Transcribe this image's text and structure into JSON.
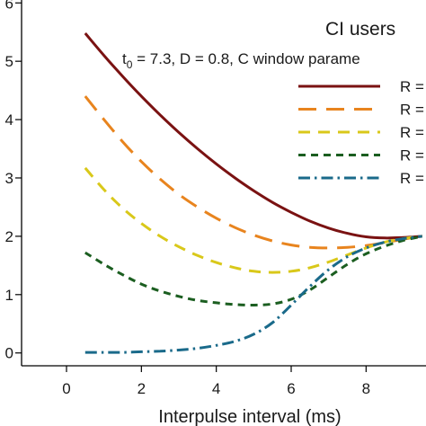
{
  "chart_data": {
    "type": "line",
    "title": "CI users",
    "subtitle": "t0 = 7.3, D = 0.8, C  window parame",
    "subtitle_parts": {
      "t": "t",
      "sub": "0",
      "rest": " = 7.3, D = 0.8, C  window parame"
    },
    "xlabel": "Interpulse interval (ms)",
    "ylabel": "",
    "xlim": [
      -1.2,
      9.6
    ],
    "ylim": [
      -0.22,
      6.05
    ],
    "x_ticks": [
      0,
      2,
      4,
      6,
      8
    ],
    "x_tick_labels": [
      "0",
      "2",
      "4",
      "6",
      "8"
    ],
    "y_ticks": [
      0,
      1,
      2,
      3,
      4,
      5,
      6
    ],
    "y_tick_labels": [
      "0",
      "1",
      "2",
      "3",
      "4",
      "5",
      "6"
    ],
    "grid": false,
    "legend_position": "top-right",
    "series": [
      {
        "name": "R =",
        "color": "#7a1212",
        "dash": "solid",
        "x": [
          0.5,
          1.0,
          1.5,
          2.0,
          2.5,
          3.0,
          3.5,
          4.0,
          4.5,
          5.0,
          5.5,
          6.0,
          6.5,
          7.0,
          7.5,
          8.0,
          8.5,
          9.0,
          9.5
        ],
        "y": [
          5.48,
          5.1,
          4.74,
          4.4,
          4.08,
          3.78,
          3.5,
          3.24,
          3.0,
          2.78,
          2.58,
          2.41,
          2.26,
          2.14,
          2.05,
          1.99,
          1.97,
          1.98,
          2.0
        ]
      },
      {
        "name": "R =",
        "color": "#e8841e",
        "dash": "long",
        "x": [
          0.5,
          1.0,
          1.5,
          2.0,
          2.5,
          3.0,
          3.5,
          4.0,
          4.5,
          5.0,
          5.5,
          6.0,
          6.5,
          7.0,
          7.5,
          8.0,
          8.5,
          9.0,
          9.5
        ],
        "y": [
          4.4,
          4.0,
          3.62,
          3.28,
          2.98,
          2.72,
          2.5,
          2.31,
          2.15,
          2.02,
          1.92,
          1.85,
          1.81,
          1.8,
          1.81,
          1.84,
          1.89,
          1.95,
          2.0
        ]
      },
      {
        "name": "R =",
        "color": "#d9c81a",
        "dash": "medium",
        "x": [
          0.5,
          1.0,
          1.5,
          2.0,
          2.5,
          3.0,
          3.5,
          4.0,
          4.5,
          5.0,
          5.5,
          6.0,
          6.5,
          7.0,
          7.5,
          8.0,
          8.5,
          9.0,
          9.5
        ],
        "y": [
          3.17,
          2.8,
          2.48,
          2.22,
          2.0,
          1.82,
          1.67,
          1.55,
          1.46,
          1.4,
          1.38,
          1.4,
          1.46,
          1.56,
          1.68,
          1.8,
          1.9,
          1.96,
          2.0
        ]
      },
      {
        "name": "R =",
        "color": "#1b5e20",
        "dash": "short",
        "x": [
          0.5,
          1.0,
          1.5,
          2.0,
          2.5,
          3.0,
          3.5,
          4.0,
          4.5,
          5.0,
          5.5,
          6.0,
          6.5,
          7.0,
          7.5,
          8.0,
          8.5,
          9.0,
          9.5
        ],
        "y": [
          1.72,
          1.52,
          1.34,
          1.18,
          1.06,
          0.97,
          0.9,
          0.86,
          0.83,
          0.82,
          0.84,
          0.92,
          1.08,
          1.3,
          1.52,
          1.7,
          1.83,
          1.93,
          2.0
        ]
      },
      {
        "name": "R =",
        "color": "#1a6a8a",
        "dash": "dashdot",
        "x": [
          0.5,
          1.0,
          1.5,
          2.0,
          2.5,
          3.0,
          3.5,
          4.0,
          4.5,
          5.0,
          5.5,
          6.0,
          6.5,
          7.0,
          7.5,
          8.0,
          8.5,
          9.0,
          9.5
        ],
        "y": [
          0.01,
          0.01,
          0.01,
          0.02,
          0.03,
          0.05,
          0.08,
          0.13,
          0.2,
          0.32,
          0.52,
          0.82,
          1.14,
          1.43,
          1.65,
          1.8,
          1.9,
          1.96,
          2.0
        ]
      }
    ]
  }
}
